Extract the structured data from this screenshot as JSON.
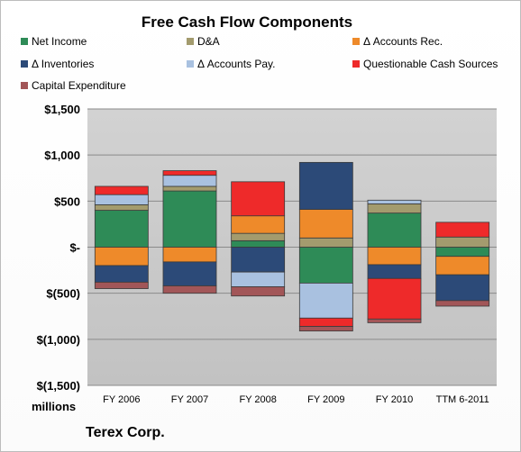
{
  "chart_data": {
    "type": "bar",
    "stacked": true,
    "title": "Free Cash Flow Components",
    "ylabel": "millions",
    "ylim": [
      -1500,
      1500
    ],
    "yticks": [
      1500,
      1000,
      500,
      0,
      -500,
      -1000,
      -1500
    ],
    "ytick_labels": [
      "$1,500",
      "$1,000",
      "$500",
      "$-",
      "$(500)",
      "$(1,000)",
      "$(1,500)"
    ],
    "grid": true,
    "legend_position": "top",
    "categories": [
      "FY 2006",
      "FY 2007",
      "FY 2008",
      "FY 2009",
      "FY 2010",
      "TTM 6-2011"
    ],
    "series": [
      {
        "name": "Net Income",
        "color": "#2e8b57",
        "values": [
          400,
          610,
          70,
          -390,
          370,
          -100
        ]
      },
      {
        "name": "D&A",
        "color": "#a39b6e",
        "values": [
          60,
          50,
          80,
          100,
          100,
          110
        ]
      },
      {
        "name": "Δ Accounts Rec.",
        "color": "#ee8a2a",
        "values": [
          -200,
          -160,
          190,
          310,
          -190,
          -200
        ]
      },
      {
        "name": "Δ Inventories",
        "color": "#2c4a78",
        "values": [
          -180,
          -260,
          -270,
          510,
          -150,
          -280
        ]
      },
      {
        "name": "Δ Accounts Pay.",
        "color": "#a9c1e0",
        "values": [
          110,
          120,
          -160,
          -380,
          40,
          0
        ]
      },
      {
        "name": "Questionable Cash Sources",
        "color": "#ee2a2a",
        "values": [
          90,
          50,
          370,
          -90,
          -440,
          160
        ]
      },
      {
        "name": "Capital Expenditure",
        "color": "#a25658",
        "values": [
          -70,
          -80,
          -100,
          -50,
          -40,
          -60
        ]
      }
    ]
  },
  "footer": {
    "company": "Terex Corp."
  }
}
